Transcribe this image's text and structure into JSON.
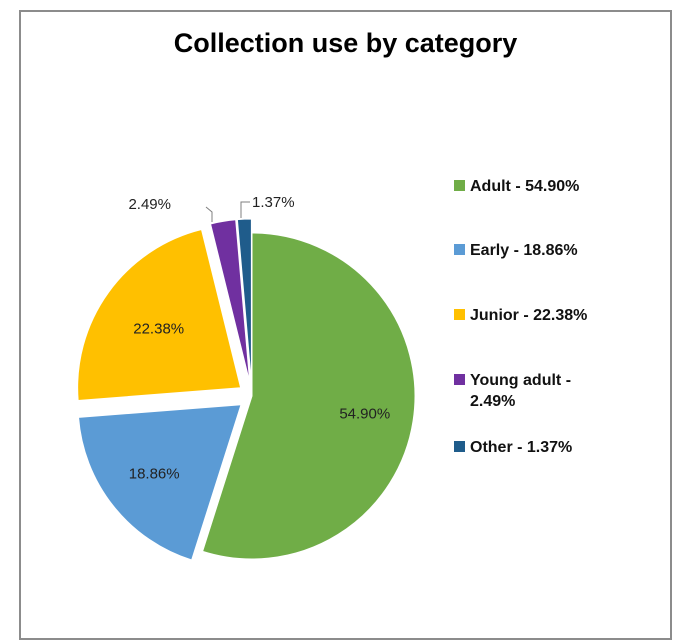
{
  "chart_data": {
    "type": "pie",
    "title": "Collection use by category",
    "slices": [
      {
        "label": "Adult",
        "value": 54.9,
        "data_label": "54.90%",
        "legend_text": "Adult -  54.90%",
        "color": "#70ad47",
        "exploded": false
      },
      {
        "label": "Early",
        "value": 18.86,
        "data_label": "18.86%",
        "legend_text": "Early -  18.86%",
        "color": "#5b9bd5",
        "exploded": true
      },
      {
        "label": "Junior",
        "value": 22.38,
        "data_label": "22.38%",
        "legend_text": "Junior -  22.38%",
        "color": "#ffc000",
        "exploded": true
      },
      {
        "label": "Young adult",
        "value": 2.49,
        "data_label": "2.49%",
        "legend_text": "Young adult - 2.49%",
        "color": "#7030a0",
        "exploded": true
      },
      {
        "label": "Other",
        "value": 1.37,
        "data_label": "1.37%",
        "legend_text": "Other -  1.37%",
        "color": "#1f5c8b",
        "exploded": true
      }
    ],
    "legend_position": "right"
  }
}
